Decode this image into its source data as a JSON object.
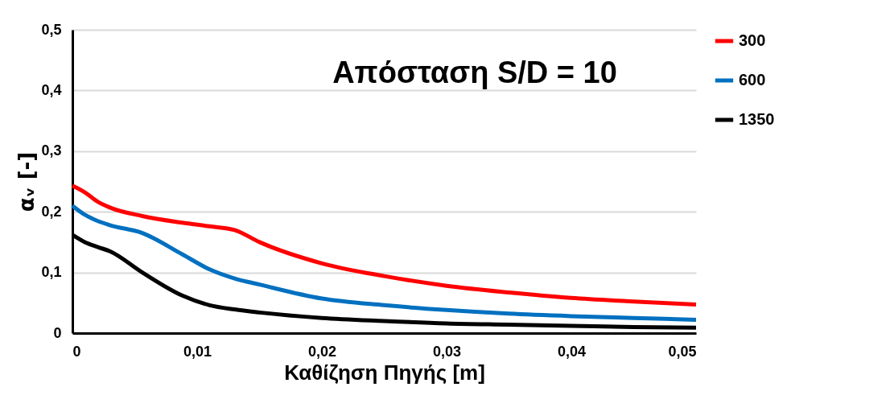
{
  "chart_data": {
    "type": "line",
    "title": "Απόσταση S/D = 10",
    "xlabel": "Καθίζηση Πηγής [m]",
    "ylabel": "αᵥ [-]",
    "x": [
      0,
      0.001,
      0.002,
      0.003,
      0.0056,
      0.0088,
      0.011,
      0.013,
      0.015,
      0.02,
      0.025,
      0.03,
      0.035,
      0.04,
      0.045,
      0.05
    ],
    "series": [
      {
        "name": "300",
        "color": "#ff0000",
        "values": [
          0.243,
          0.232,
          0.217,
          0.207,
          0.193,
          0.182,
          0.176,
          0.17,
          0.15,
          0.115,
          0.094,
          0.078,
          0.067,
          0.058,
          0.052,
          0.047
        ]
      },
      {
        "name": "600",
        "color": "#0070c0",
        "values": [
          0.21,
          0.195,
          0.185,
          0.178,
          0.165,
          0.13,
          0.105,
          0.09,
          0.08,
          0.057,
          0.046,
          0.038,
          0.032,
          0.028,
          0.025,
          0.022
        ]
      },
      {
        "name": "1350",
        "color": "#000000",
        "values": [
          0.162,
          0.15,
          0.142,
          0.135,
          0.1,
          0.062,
          0.046,
          0.039,
          0.034,
          0.025,
          0.02,
          0.016,
          0.014,
          0.012,
          0.01,
          0.009
        ]
      }
    ],
    "xlim": [
      0,
      0.05
    ],
    "xticks": [
      0,
      {
        "value": 0.01,
        "label": "0,01"
      },
      {
        "value": 0.02,
        "label": "0,02"
      },
      {
        "value": 0.03,
        "label": "0,03"
      },
      {
        "value": 0.04,
        "label": "0,04"
      },
      {
        "value": 0.05,
        "label": "0,05"
      }
    ],
    "ylim": [
      0,
      0.5
    ],
    "yticks": [
      0,
      {
        "value": 0.1,
        "label": "0,1"
      },
      {
        "value": 0.2,
        "label": "0,2"
      },
      {
        "value": 0.3,
        "label": "0,3"
      },
      {
        "value": 0.4,
        "label": "0,4"
      },
      {
        "value": 0.5,
        "label": "0,5"
      }
    ],
    "grid": "y",
    "legend": "right",
    "line_style": "solid",
    "marker": "none"
  }
}
